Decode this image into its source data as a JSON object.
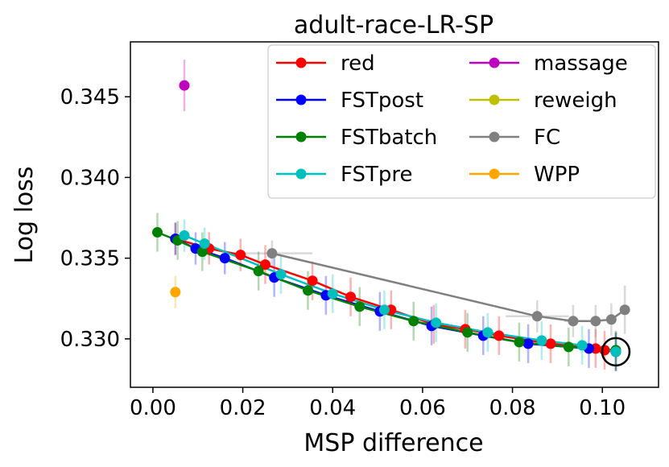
{
  "chart_data": {
    "type": "line",
    "title": "adult-race-LR-SP",
    "xlabel": "MSP difference",
    "ylabel": "Log loss",
    "xlim": [
      -0.005,
      0.1125
    ],
    "ylim": [
      0.327,
      0.3484
    ],
    "xticks": [
      0.0,
      0.02,
      0.04,
      0.06,
      0.08,
      0.1
    ],
    "xtick_labels": [
      "0.00",
      "0.02",
      "0.04",
      "0.06",
      "0.08",
      "0.10"
    ],
    "yticks": [
      0.33,
      0.335,
      0.34,
      0.345
    ],
    "ytick_labels": [
      "0.330",
      "0.335",
      "0.340",
      "0.345"
    ],
    "legend_position": "top-right",
    "series": [
      {
        "name": "red",
        "color": "#ff0000",
        "points": [
          {
            "x": 0.005,
            "y": 0.3362,
            "xerr": 0.001,
            "yerr": 0.001
          },
          {
            "x": 0.0125,
            "y": 0.3356,
            "xerr": 0.001,
            "yerr": 0.001
          },
          {
            "x": 0.0195,
            "y": 0.3352,
            "xerr": 0.001,
            "yerr": 0.001
          },
          {
            "x": 0.025,
            "y": 0.3346,
            "xerr": 0.001,
            "yerr": 0.0012
          },
          {
            "x": 0.0355,
            "y": 0.3336,
            "xerr": 0.001,
            "yerr": 0.0012
          },
          {
            "x": 0.044,
            "y": 0.3326,
            "xerr": 0.001,
            "yerr": 0.0012
          },
          {
            "x": 0.053,
            "y": 0.3318,
            "xerr": 0.001,
            "yerr": 0.0012
          },
          {
            "x": 0.0625,
            "y": 0.3309,
            "xerr": 0.001,
            "yerr": 0.0012
          },
          {
            "x": 0.0695,
            "y": 0.3306,
            "xerr": 0.001,
            "yerr": 0.0012
          },
          {
            "x": 0.077,
            "y": 0.3302,
            "xerr": 0.001,
            "yerr": 0.0012
          },
          {
            "x": 0.0885,
            "y": 0.3297,
            "xerr": 0.001,
            "yerr": 0.0012
          },
          {
            "x": 0.0985,
            "y": 0.3294,
            "xerr": 0.001,
            "yerr": 0.0012
          },
          {
            "x": 0.1005,
            "y": 0.3293,
            "xerr": 0.001,
            "yerr": 0.0012
          },
          {
            "x": 0.103,
            "y": 0.3292,
            "xerr": 0.001,
            "yerr": 0.0012
          }
        ]
      },
      {
        "name": "FSTpost",
        "color": "#0000ff",
        "points": [
          {
            "x": 0.005,
            "y": 0.3362,
            "xerr": 0.001,
            "yerr": 0.001
          },
          {
            "x": 0.0095,
            "y": 0.3356,
            "xerr": 0.001,
            "yerr": 0.001
          },
          {
            "x": 0.016,
            "y": 0.335,
            "xerr": 0.001,
            "yerr": 0.001
          },
          {
            "x": 0.027,
            "y": 0.3338,
            "xerr": 0.001,
            "yerr": 0.0012
          },
          {
            "x": 0.0385,
            "y": 0.3327,
            "xerr": 0.001,
            "yerr": 0.0012
          },
          {
            "x": 0.0505,
            "y": 0.3317,
            "xerr": 0.001,
            "yerr": 0.0012
          },
          {
            "x": 0.062,
            "y": 0.3308,
            "xerr": 0.001,
            "yerr": 0.0012
          },
          {
            "x": 0.0735,
            "y": 0.3302,
            "xerr": 0.001,
            "yerr": 0.0012
          },
          {
            "x": 0.0835,
            "y": 0.3297,
            "xerr": 0.001,
            "yerr": 0.0012
          },
          {
            "x": 0.097,
            "y": 0.3294,
            "xerr": 0.001,
            "yerr": 0.0012
          },
          {
            "x": 0.103,
            "y": 0.3292,
            "xerr": 0.001,
            "yerr": 0.0012
          }
        ]
      },
      {
        "name": "FSTbatch",
        "color": "#008000",
        "points": [
          {
            "x": 0.001,
            "y": 0.3366,
            "xerr": 0.001,
            "yerr": 0.0012
          },
          {
            "x": 0.0055,
            "y": 0.3361,
            "xerr": 0.001,
            "yerr": 0.0012
          },
          {
            "x": 0.011,
            "y": 0.3354,
            "xerr": 0.001,
            "yerr": 0.0012
          },
          {
            "x": 0.0235,
            "y": 0.3342,
            "xerr": 0.001,
            "yerr": 0.0012
          },
          {
            "x": 0.0345,
            "y": 0.333,
            "xerr": 0.001,
            "yerr": 0.0012
          },
          {
            "x": 0.046,
            "y": 0.332,
            "xerr": 0.001,
            "yerr": 0.0012
          },
          {
            "x": 0.058,
            "y": 0.3311,
            "xerr": 0.001,
            "yerr": 0.0012
          },
          {
            "x": 0.07,
            "y": 0.3304,
            "xerr": 0.001,
            "yerr": 0.0012
          },
          {
            "x": 0.0815,
            "y": 0.3298,
            "xerr": 0.001,
            "yerr": 0.0012
          },
          {
            "x": 0.0925,
            "y": 0.3295,
            "xerr": 0.001,
            "yerr": 0.0012
          },
          {
            "x": 0.103,
            "y": 0.3293,
            "xerr": 0.001,
            "yerr": 0.0012
          }
        ]
      },
      {
        "name": "FSTpre",
        "color": "#00bfbf",
        "points": [
          {
            "x": 0.007,
            "y": 0.3364,
            "xerr": 0.001,
            "yerr": 0.001
          },
          {
            "x": 0.0115,
            "y": 0.3359,
            "xerr": 0.001,
            "yerr": 0.001
          },
          {
            "x": 0.0285,
            "y": 0.334,
            "xerr": 0.001,
            "yerr": 0.0012
          },
          {
            "x": 0.04,
            "y": 0.3328,
            "xerr": 0.001,
            "yerr": 0.0012
          },
          {
            "x": 0.0515,
            "y": 0.3318,
            "xerr": 0.001,
            "yerr": 0.0012
          },
          {
            "x": 0.063,
            "y": 0.331,
            "xerr": 0.001,
            "yerr": 0.0012
          },
          {
            "x": 0.0745,
            "y": 0.3304,
            "xerr": 0.001,
            "yerr": 0.0012
          },
          {
            "x": 0.0865,
            "y": 0.3299,
            "xerr": 0.001,
            "yerr": 0.0012
          },
          {
            "x": 0.0955,
            "y": 0.3296,
            "xerr": 0.001,
            "yerr": 0.0012
          },
          {
            "x": 0.103,
            "y": 0.3292,
            "xerr": 0.001,
            "yerr": 0.0012
          }
        ]
      },
      {
        "name": "massage",
        "color": "#bf00bf",
        "points": [
          {
            "x": 0.007,
            "y": 0.3457,
            "xerr": 0.001,
            "yerr": 0.0016
          }
        ]
      },
      {
        "name": "reweigh",
        "color": "#bfbf00",
        "points": []
      },
      {
        "name": "FC",
        "color": "#808080",
        "points": [
          {
            "x": 0.0265,
            "y": 0.3353,
            "xerr": 0.009,
            "yerr": 0.0008
          },
          {
            "x": 0.0855,
            "y": 0.3314,
            "xerr": 0.007,
            "yerr": 0.001
          },
          {
            "x": 0.0935,
            "y": 0.3311,
            "xerr": 0.002,
            "yerr": 0.001
          },
          {
            "x": 0.0985,
            "y": 0.3311,
            "xerr": 0.001,
            "yerr": 0.001
          },
          {
            "x": 0.102,
            "y": 0.3312,
            "xerr": 0.001,
            "yerr": 0.001
          },
          {
            "x": 0.105,
            "y": 0.3318,
            "xerr": 0.001,
            "yerr": 0.0015
          }
        ]
      },
      {
        "name": "WPP",
        "color": "#ffa500",
        "points": [
          {
            "x": 0.005,
            "y": 0.3329,
            "xerr": 0.0008,
            "yerr": 0.001
          }
        ]
      }
    ],
    "lines": [
      "red",
      "FSTpost",
      "FSTbatch",
      "FSTpre",
      "FC"
    ],
    "highlight": {
      "x": 0.103,
      "y": 0.3292
    }
  }
}
